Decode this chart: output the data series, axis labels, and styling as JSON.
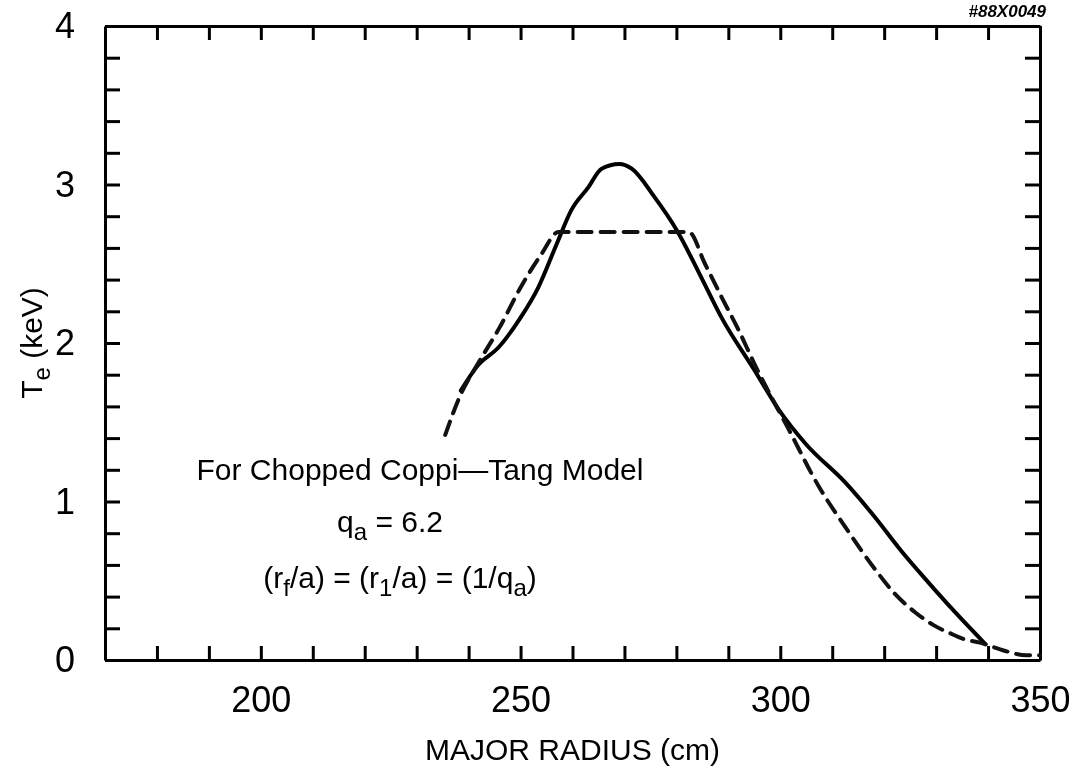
{
  "chart_data": {
    "type": "line",
    "xlabel": "MAJOR RADIUS (cm)",
    "ylabel": "T$_{e}$ (keV)",
    "xlim": [
      170,
      350
    ],
    "ylim": [
      0,
      4
    ],
    "xticks": [
      {
        "value": 180,
        "label": null
      },
      {
        "value": 190,
        "label": null
      },
      200,
      {
        "value": 210,
        "label": null
      },
      {
        "value": 220,
        "label": null
      },
      {
        "value": 230,
        "label": null
      },
      {
        "value": 240,
        "label": null
      },
      250,
      {
        "value": 260,
        "label": null
      },
      {
        "value": 270,
        "label": null
      },
      {
        "value": 280,
        "label": null
      },
      {
        "value": 290,
        "label": null
      },
      300,
      {
        "value": 310,
        "label": null
      },
      {
        "value": 320,
        "label": null
      },
      {
        "value": 330,
        "label": null
      },
      {
        "value": 340,
        "label": null
      },
      350
    ],
    "yticks": [
      0,
      {
        "value": 0.2,
        "label": null
      },
      {
        "value": 0.4,
        "label": null
      },
      {
        "value": 0.6,
        "label": null
      },
      {
        "value": 0.8,
        "label": null
      },
      1,
      {
        "value": 1.2,
        "label": null
      },
      {
        "value": 1.4,
        "label": null
      },
      {
        "value": 1.6,
        "label": null
      },
      {
        "value": 1.8,
        "label": null
      },
      2,
      {
        "value": 2.2,
        "label": null
      },
      {
        "value": 2.4,
        "label": null
      },
      {
        "value": 2.6,
        "label": null
      },
      {
        "value": 2.8,
        "label": null
      },
      3,
      {
        "value": 3.2,
        "label": null
      },
      {
        "value": 3.4,
        "label": null
      },
      {
        "value": 3.6,
        "label": null
      },
      {
        "value": 3.8,
        "label": null
      },
      4
    ],
    "marker": "none",
    "series": [
      {
        "color": "#000000",
        "line_style": "solid",
        "x": [
          238.5,
          241.8,
          245.7,
          250,
          253.4,
          256.9,
          259.8,
          263,
          265.6,
          269,
          271.4,
          275.8,
          280.1,
          285,
          288.7,
          295,
          299.7,
          305,
          312.5,
          318,
          323.5,
          328.5,
          333.7,
          339.5
        ],
        "values": [
          1.7,
          1.86,
          1.97,
          2.16,
          2.35,
          2.62,
          2.84,
          2.98,
          3.1,
          3.13,
          3.1,
          2.92,
          2.71,
          2.4,
          2.16,
          1.83,
          1.58,
          1.36,
          1.12,
          0.91,
          0.68,
          0.49,
          0.3,
          0.1
        ]
      },
      {
        "color": "#111111",
        "line_style": "dashed",
        "x": [
          235.5,
          238.4,
          241.8,
          246,
          250,
          254,
          257.3,
          265,
          272,
          282.4,
          285.5,
          288.7,
          292,
          295,
          301.7,
          307.5,
          312.5,
          318.3,
          322,
          326,
          329.5,
          332.6,
          335.5,
          338.4,
          343,
          347.4,
          350
        ],
        "values": [
          1.42,
          1.67,
          1.87,
          2.1,
          2.35,
          2.56,
          2.7,
          2.7,
          2.7,
          2.7,
          2.5,
          2.29,
          2.08,
          1.87,
          1.45,
          1.09,
          0.84,
          0.57,
          0.42,
          0.3,
          0.22,
          0.17,
          0.13,
          0.11,
          0.06,
          0.03,
          0.03
        ]
      }
    ],
    "annotations": [
      "For Chopped Coppi—Tang Model",
      "q$_{a}$ = 6.2",
      "(r$_{f}$/a) = (r$_{1}$/a) = (1/q$_{a}$)",
      "#88X0049"
    ]
  }
}
